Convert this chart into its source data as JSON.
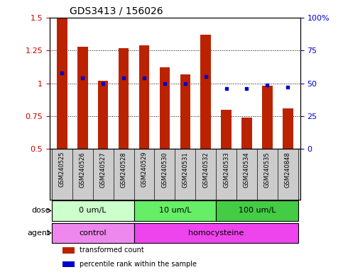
{
  "title": "GDS3413 / 156026",
  "samples": [
    "GSM240525",
    "GSM240526",
    "GSM240527",
    "GSM240528",
    "GSM240529",
    "GSM240530",
    "GSM240531",
    "GSM240532",
    "GSM240533",
    "GSM240534",
    "GSM240535",
    "GSM240848"
  ],
  "bar_values": [
    1.5,
    1.28,
    1.02,
    1.27,
    1.29,
    1.12,
    1.07,
    1.37,
    0.8,
    0.74,
    0.98,
    0.81
  ],
  "bar_color": "#bb2200",
  "percentile_values": [
    58,
    54,
    50,
    54,
    54,
    50,
    50,
    55,
    46,
    46,
    49,
    47
  ],
  "percentile_color": "#0000cc",
  "ylim_left": [
    0.5,
    1.5
  ],
  "ylim_right": [
    0,
    100
  ],
  "yticks_left": [
    0.5,
    0.75,
    1.0,
    1.25,
    1.5
  ],
  "yticks_right": [
    0,
    25,
    50,
    75,
    100
  ],
  "ytick_labels_left": [
    "0.5",
    "0.75",
    "1",
    "1.25",
    "1.5"
  ],
  "ytick_labels_right": [
    "0",
    "25",
    "50",
    "75",
    "100%"
  ],
  "dose_groups": [
    {
      "label": "0 um/L",
      "start": 0,
      "end": 4,
      "color": "#ccffcc"
    },
    {
      "label": "10 um/L",
      "start": 4,
      "end": 8,
      "color": "#66ee66"
    },
    {
      "label": "100 um/L",
      "start": 8,
      "end": 12,
      "color": "#44cc44"
    }
  ],
  "agent_groups": [
    {
      "label": "control",
      "start": 0,
      "end": 4,
      "color": "#ee88ee"
    },
    {
      "label": "homocysteine",
      "start": 4,
      "end": 12,
      "color": "#ee44ee"
    }
  ],
  "dose_label": "dose",
  "agent_label": "agent",
  "legend_items": [
    {
      "label": "transformed count",
      "color": "#bb2200"
    },
    {
      "label": "percentile rank within the sample",
      "color": "#0000cc"
    }
  ],
  "bg_color": "#ffffff",
  "tick_color_left": "#cc0000",
  "tick_color_right": "#0000cc",
  "xtick_bg": "#cccccc",
  "bar_width": 0.5
}
